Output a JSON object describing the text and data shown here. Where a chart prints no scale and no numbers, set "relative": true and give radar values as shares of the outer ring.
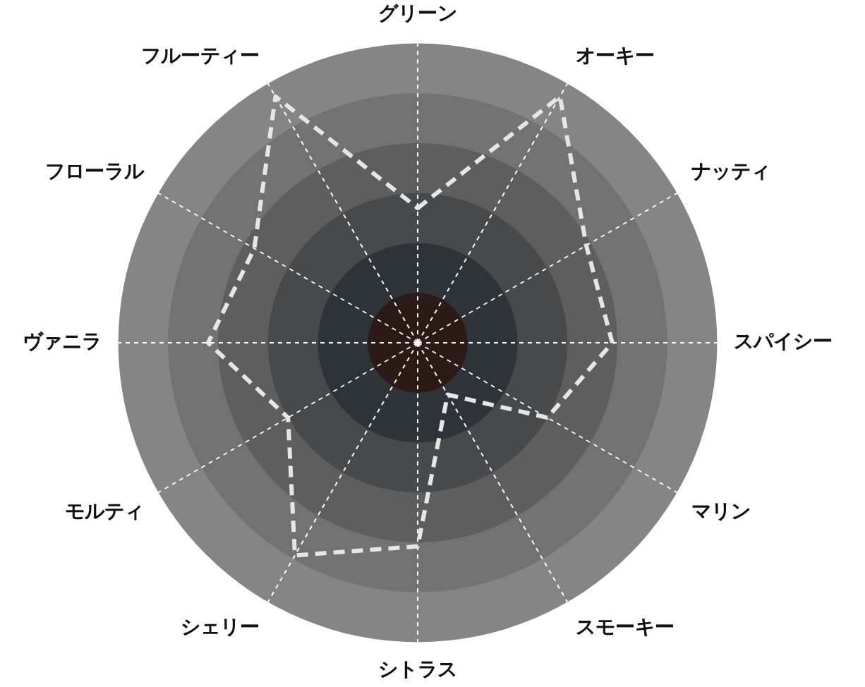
{
  "chart_data": {
    "type": "radar",
    "relative": true,
    "categories": [
      "グリーン",
      "オーキー",
      "ナッティ",
      "スパイシー",
      "マリン",
      "スモーキー",
      "シトラス",
      "シェリー",
      "モルティ",
      "ヴァニラ",
      "フローラル",
      "フルーティー"
    ],
    "series": [
      {
        "color": "#e6e6e6",
        "values": [
          0.45,
          0.95,
          0.65,
          0.65,
          0.5,
          0.2,
          0.68,
          0.82,
          0.5,
          0.7,
          0.63,
          0.95
        ]
      }
    ],
    "marker": "none",
    "line_style": "dashed",
    "grid": true,
    "legend": false
  }
}
